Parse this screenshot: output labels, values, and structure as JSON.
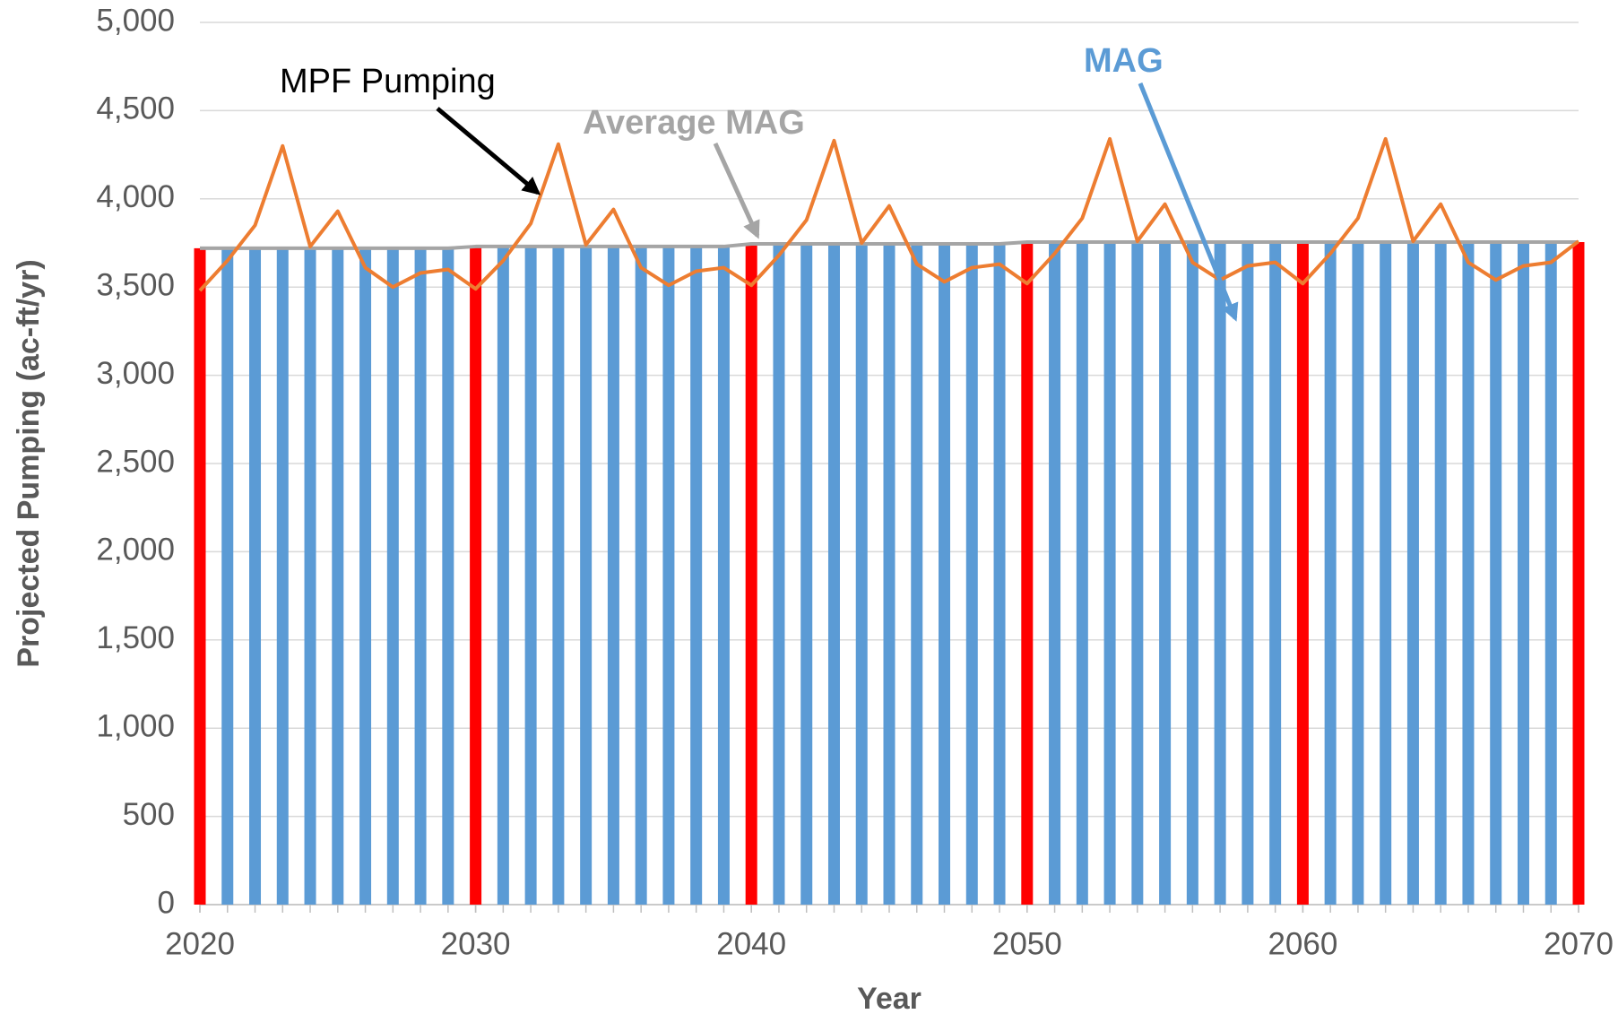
{
  "chart_data": {
    "type": "bar_line",
    "x_label": "Year",
    "y_label": "Projected Pumping (ac-ft/yr)",
    "x": [
      2020,
      2021,
      2022,
      2023,
      2024,
      2025,
      2026,
      2027,
      2028,
      2029,
      2030,
      2031,
      2032,
      2033,
      2034,
      2035,
      2036,
      2037,
      2038,
      2039,
      2040,
      2041,
      2042,
      2043,
      2044,
      2045,
      2046,
      2047,
      2048,
      2049,
      2050,
      2051,
      2052,
      2053,
      2054,
      2055,
      2056,
      2057,
      2058,
      2059,
      2060,
      2061,
      2062,
      2063,
      2064,
      2065,
      2066,
      2067,
      2068,
      2069,
      2070
    ],
    "bars": {
      "values": [
        3720,
        3720,
        3720,
        3720,
        3720,
        3720,
        3720,
        3720,
        3720,
        3720,
        3730,
        3730,
        3730,
        3730,
        3730,
        3730,
        3730,
        3730,
        3730,
        3730,
        3745,
        3745,
        3745,
        3745,
        3745,
        3745,
        3745,
        3745,
        3745,
        3745,
        3755,
        3755,
        3755,
        3755,
        3755,
        3755,
        3755,
        3755,
        3755,
        3755,
        3755,
        3755,
        3755,
        3755,
        3755,
        3755,
        3755,
        3755,
        3755,
        3755,
        3755
      ],
      "colors": [
        "#ff0000",
        "#5b9bd5",
        "#5b9bd5",
        "#5b9bd5",
        "#5b9bd5",
        "#5b9bd5",
        "#5b9bd5",
        "#5b9bd5",
        "#5b9bd5",
        "#5b9bd5",
        "#ff0000",
        "#5b9bd5",
        "#5b9bd5",
        "#5b9bd5",
        "#5b9bd5",
        "#5b9bd5",
        "#5b9bd5",
        "#5b9bd5",
        "#5b9bd5",
        "#5b9bd5",
        "#ff0000",
        "#5b9bd5",
        "#5b9bd5",
        "#5b9bd5",
        "#5b9bd5",
        "#5b9bd5",
        "#5b9bd5",
        "#5b9bd5",
        "#5b9bd5",
        "#5b9bd5",
        "#ff0000",
        "#5b9bd5",
        "#5b9bd5",
        "#5b9bd5",
        "#5b9bd5",
        "#5b9bd5",
        "#5b9bd5",
        "#5b9bd5",
        "#5b9bd5",
        "#5b9bd5",
        "#ff0000",
        "#5b9bd5",
        "#5b9bd5",
        "#5b9bd5",
        "#5b9bd5",
        "#5b9bd5",
        "#5b9bd5",
        "#5b9bd5",
        "#5b9bd5",
        "#5b9bd5",
        "#ff0000"
      ]
    },
    "lines": [
      {
        "color": "#a5a5a5",
        "values": [
          3720,
          3720,
          3720,
          3720,
          3720,
          3720,
          3720,
          3720,
          3720,
          3720,
          3730,
          3730,
          3730,
          3730,
          3730,
          3730,
          3730,
          3730,
          3730,
          3730,
          3745,
          3745,
          3745,
          3745,
          3745,
          3745,
          3745,
          3745,
          3745,
          3745,
          3755,
          3755,
          3755,
          3755,
          3755,
          3755,
          3755,
          3755,
          3755,
          3755,
          3755,
          3755,
          3755,
          3755,
          3755,
          3755,
          3755,
          3755,
          3755,
          3755,
          3755
        ]
      },
      {
        "color": "#ed7d31",
        "values": [
          3480,
          3650,
          3850,
          4300,
          3730,
          3930,
          3610,
          3500,
          3580,
          3600,
          3490,
          3650,
          3860,
          4310,
          3740,
          3940,
          3610,
          3510,
          3590,
          3610,
          3510,
          3680,
          3880,
          4330,
          3750,
          3960,
          3630,
          3530,
          3610,
          3630,
          3520,
          3690,
          3890,
          4340,
          3760,
          3970,
          3640,
          3540,
          3620,
          3640,
          3520,
          3690,
          3890,
          4340,
          3760,
          3970,
          3640,
          3540,
          3620,
          3640,
          3760
        ]
      }
    ],
    "annotations": [
      {
        "text": "MPF Pumping",
        "color": "#000000"
      },
      {
        "text": "Average MAG",
        "color": "#a5a5a5"
      },
      {
        "text": "MAG",
        "color": "#5b9bd5"
      }
    ],
    "xlim": [
      2020,
      2070
    ],
    "xticks": [
      2020,
      2030,
      2040,
      2050,
      2060,
      2070
    ],
    "ylim": [
      0,
      5000
    ],
    "yticks": [
      0,
      500,
      {
        "value": 1000,
        "label": "1,000"
      },
      {
        "value": 1500,
        "label": "1,500"
      },
      {
        "value": 2000,
        "label": "2,000"
      },
      {
        "value": 2500,
        "label": "2,500"
      },
      {
        "value": 3000,
        "label": "3,000"
      },
      {
        "value": 3500,
        "label": "3,500"
      },
      {
        "value": 4000,
        "label": "4,000"
      },
      {
        "value": 4500,
        "label": "4,500"
      },
      {
        "value": 5000,
        "label": "5,000"
      }
    ],
    "grid": true
  }
}
